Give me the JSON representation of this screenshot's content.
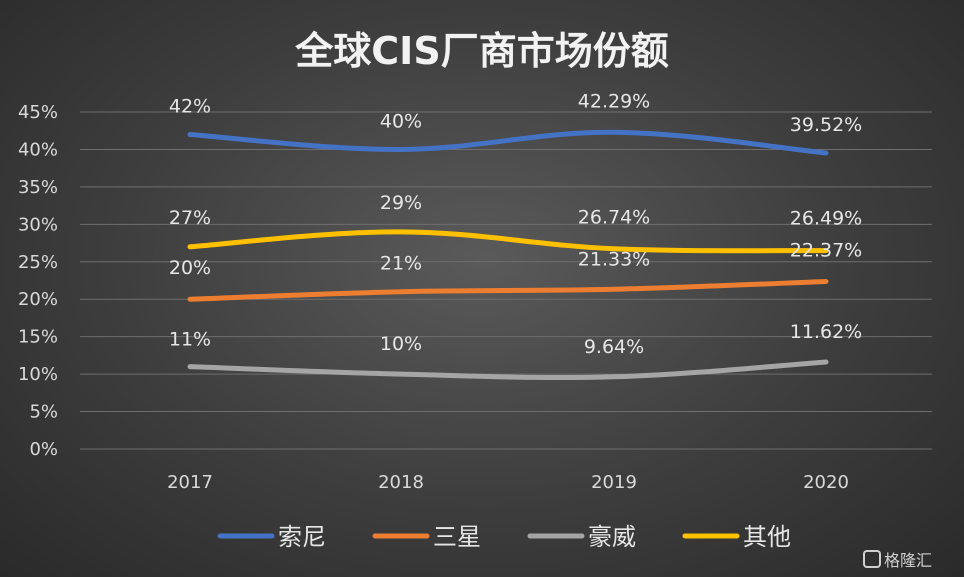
{
  "chart_data": {
    "type": "line",
    "title": "全球CIS厂商市场份额",
    "categories": [
      "2017",
      "2018",
      "2019",
      "2020"
    ],
    "ylim": [
      0,
      45
    ],
    "y_ticks": [
      "0%",
      "5%",
      "10%",
      "15%",
      "20%",
      "25%",
      "30%",
      "35%",
      "40%",
      "45%"
    ],
    "grid": true,
    "legend_position": "bottom",
    "series": [
      {
        "name": "索尼",
        "color": "#4472C4",
        "values": [
          42,
          40,
          42.29,
          39.52
        ],
        "labels": [
          "42%",
          "40%",
          "42.29%",
          "39.52%"
        ]
      },
      {
        "name": "三星",
        "color": "#ED7D31",
        "values": [
          20,
          21,
          21.33,
          22.37
        ],
        "labels": [
          "20%",
          "21%",
          "21.33%",
          "22.37%"
        ]
      },
      {
        "name": "豪威",
        "color": "#A5A5A5",
        "values": [
          11,
          10,
          9.64,
          11.62
        ],
        "labels": [
          "11%",
          "10%",
          "9.64%",
          "11.62%"
        ]
      },
      {
        "name": "其他",
        "color": "#FFC000",
        "values": [
          27,
          29,
          26.74,
          26.49
        ],
        "labels": [
          "27%",
          "29%",
          "26.74%",
          "26.49%"
        ]
      }
    ]
  },
  "watermark": "格隆汇"
}
